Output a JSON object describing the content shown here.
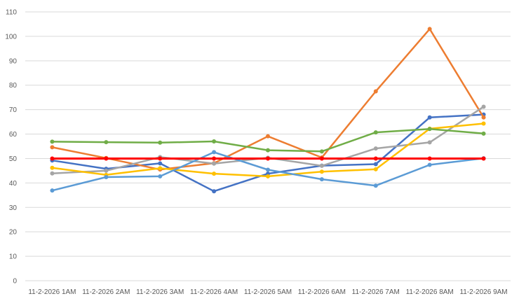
{
  "chart_data": {
    "type": "line",
    "title": "",
    "xlabel": "",
    "ylabel": "",
    "categories": [
      "11-2-2026 1AM",
      "11-2-2026 2AM",
      "11-2-2026 3AM",
      "11-2-2026 4AM",
      "11-2-2026 5AM",
      "11-2-2026 6AM",
      "11-2-2026 7AM",
      "11-2-2026 8AM",
      "11-2-2026 9AM"
    ],
    "ylim": [
      0,
      110
    ],
    "yticks": [
      0,
      10,
      20,
      30,
      40,
      50,
      60,
      70,
      80,
      90,
      100,
      110
    ],
    "grid": true,
    "series": [
      {
        "color": "#4472C4",
        "values": [
          49.2,
          45.8,
          48.0,
          36.6,
          43.8,
          47.1,
          47.7,
          66.8,
          68.0
        ]
      },
      {
        "color": "#ED7D31",
        "values": [
          54.6,
          50.2,
          45.5,
          48.1,
          59.1,
          50.4,
          77.5,
          103.0,
          66.8
        ]
      },
      {
        "color": "#A5A5A5",
        "values": [
          43.9,
          45.0,
          50.6,
          47.9,
          50.3,
          47.0,
          54.1,
          56.6,
          71.2
        ]
      },
      {
        "color": "#FFC000",
        "values": [
          46.2,
          43.3,
          46.0,
          43.8,
          42.7,
          44.6,
          45.6,
          62.2,
          64.3
        ]
      },
      {
        "color": "#5B9BD5",
        "values": [
          36.9,
          42.4,
          42.7,
          52.6,
          45.4,
          41.5,
          38.9,
          47.4,
          50.1
        ]
      },
      {
        "color": "#70AD47",
        "values": [
          56.9,
          56.7,
          56.5,
          57.0,
          53.4,
          52.9,
          60.7,
          62.1,
          60.2
        ]
      },
      {
        "color": "#FF0000",
        "values": [
          50,
          50,
          50,
          50,
          50,
          50,
          50,
          50,
          50
        ]
      }
    ]
  }
}
